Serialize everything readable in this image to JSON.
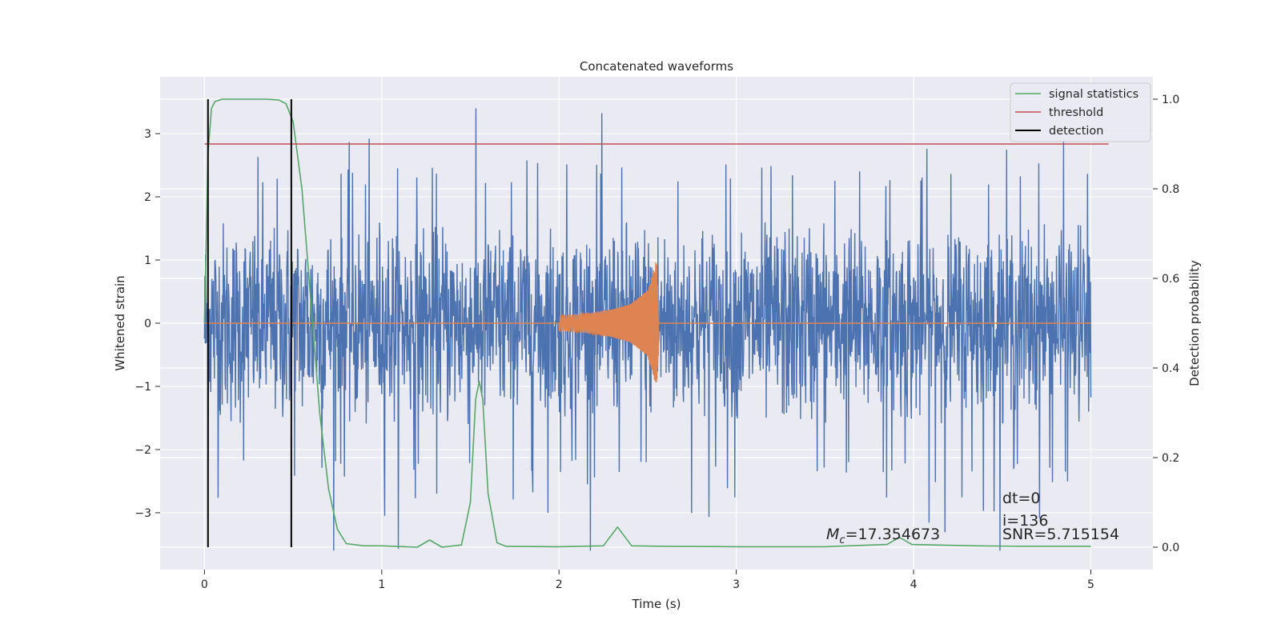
{
  "chart_data": {
    "type": "line",
    "title": "Concatenated waveforms",
    "xlabel": "Time (s)",
    "ylabel": "Whitened strain",
    "ylabel_right": "Detection probability",
    "xlim": [
      -0.25,
      5.35
    ],
    "ylim": [
      -3.9,
      3.9
    ],
    "ylim_right": [
      -0.05,
      1.05
    ],
    "x_ticks": [
      0,
      1,
      2,
      3,
      4,
      5
    ],
    "y_ticks": [
      -3,
      -2,
      -1,
      0,
      1,
      2,
      3
    ],
    "y_ticks_right": [
      0.0,
      0.2,
      0.4,
      0.6,
      0.8,
      1.0
    ],
    "grid": true,
    "legend_position": "top-right",
    "colors": {
      "background": "#eaeaf2",
      "noise": "#4c72b0",
      "injection": "#dd8452",
      "signal_statistics": "#55a868",
      "threshold": "#c44e52",
      "detection": "#000000"
    },
    "series": [
      {
        "name": "",
        "axis": "left",
        "kind": "noise",
        "x_range": [
          0,
          5
        ],
        "envelope": [
          -3.6,
          3.4
        ]
      },
      {
        "name": "",
        "axis": "left",
        "kind": "injection_chirp",
        "x": [
          2.0,
          2.1,
          2.2,
          2.3,
          2.4,
          2.5,
          2.55,
          2.57,
          2.6,
          5.0
        ],
        "amplitude": [
          0.12,
          0.14,
          0.17,
          0.22,
          0.3,
          0.52,
          1.0,
          0.0,
          0.0,
          0.0
        ]
      },
      {
        "name": "signal statistics",
        "axis": "right",
        "x": [
          0.0,
          0.02,
          0.04,
          0.06,
          0.1,
          0.2,
          0.35,
          0.42,
          0.46,
          0.5,
          0.55,
          0.6,
          0.65,
          0.7,
          0.75,
          0.8,
          0.9,
          1.0,
          1.2,
          1.27,
          1.34,
          1.45,
          1.5,
          1.53,
          1.55,
          1.57,
          1.6,
          1.65,
          1.7,
          2.0,
          2.25,
          2.33,
          2.41,
          2.6,
          3.0,
          3.5,
          3.85,
          3.92,
          3.99,
          4.35,
          4.6,
          5.0
        ],
        "y": [
          0.5,
          0.88,
          0.98,
          0.995,
          1.0,
          1.0,
          1.0,
          0.998,
          0.99,
          0.95,
          0.8,
          0.55,
          0.3,
          0.13,
          0.04,
          0.008,
          0.003,
          0.003,
          0.0,
          0.016,
          0.0,
          0.005,
          0.1,
          0.33,
          0.37,
          0.33,
          0.12,
          0.01,
          0.002,
          0.001,
          0.003,
          0.045,
          0.003,
          0.002,
          0.001,
          0.001,
          0.006,
          0.022,
          0.006,
          0.003,
          0.002,
          0.002
        ]
      },
      {
        "name": "threshold",
        "axis": "right",
        "x": [
          0.0,
          5.1
        ],
        "y": [
          0.9,
          0.9
        ]
      },
      {
        "name": "detection",
        "axis": "right",
        "kind": "vertical_lines",
        "x": [
          0.02,
          0.49
        ],
        "y_range": [
          0.0,
          1.0
        ]
      }
    ],
    "annotations": {
      "dt": "dt=0",
      "i": "i=136",
      "snr": "SNR=5.715154",
      "mc_symbol": "M",
      "mc_subscript": "c",
      "mc_value": "=17.354673"
    }
  }
}
